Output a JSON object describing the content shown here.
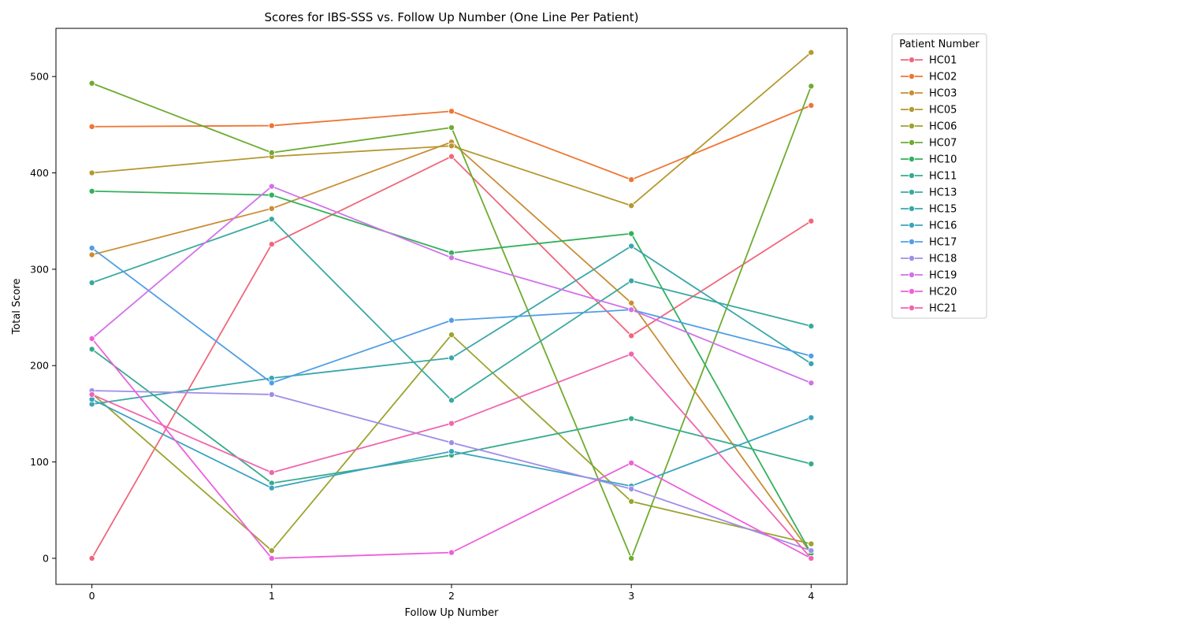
{
  "chart_data": {
    "type": "line",
    "title": "Scores for IBS-SSS vs. Follow Up Number (One Line Per Patient)",
    "xlabel": "Follow Up Number",
    "ylabel": "Total Score",
    "x": [
      0,
      1,
      2,
      3,
      4
    ],
    "xlim": [
      -0.2,
      4.2
    ],
    "ylim": [
      -27,
      550
    ],
    "xticks": [
      0,
      1,
      2,
      3,
      4
    ],
    "yticks": [
      0,
      100,
      200,
      300,
      400,
      500
    ],
    "grid": false,
    "legend": {
      "title": "Patient Number",
      "placement": "outside-right"
    },
    "series": [
      {
        "name": "HC01",
        "color": "#f0677b",
        "values": [
          0,
          326,
          417,
          231,
          350
        ]
      },
      {
        "name": "HC02",
        "color": "#ef7532",
        "values": [
          448,
          449,
          464,
          393,
          470
        ]
      },
      {
        "name": "HC03",
        "color": "#c98d33",
        "values": [
          315,
          363,
          432,
          265,
          5
        ]
      },
      {
        "name": "HC05",
        "color": "#b5982f",
        "values": [
          400,
          417,
          428,
          366,
          525
        ]
      },
      {
        "name": "HC06",
        "color": "#9ca32e",
        "values": [
          171,
          8,
          232,
          59,
          15
        ]
      },
      {
        "name": "HC07",
        "color": "#6eab30",
        "values": [
          493,
          421,
          447,
          0,
          490
        ]
      },
      {
        "name": "HC10",
        "color": "#32b15b",
        "values": [
          381,
          377,
          317,
          337,
          5
        ]
      },
      {
        "name": "HC11",
        "color": "#36ac8c",
        "values": [
          217,
          78,
          107,
          145,
          98
        ]
      },
      {
        "name": "HC13",
        "color": "#38aa9e",
        "values": [
          286,
          352,
          164,
          288,
          241
        ]
      },
      {
        "name": "HC15",
        "color": "#39a7ab",
        "values": [
          160,
          187,
          208,
          324,
          202
        ]
      },
      {
        "name": "HC16",
        "color": "#3ba3c2",
        "values": [
          165,
          73,
          111,
          75,
          146
        ]
      },
      {
        "name": "HC17",
        "color": "#519ee6",
        "values": [
          322,
          182,
          247,
          258,
          210
        ]
      },
      {
        "name": "HC18",
        "color": "#a08de9",
        "values": [
          174,
          170,
          120,
          72,
          8
        ]
      },
      {
        "name": "HC19",
        "color": "#d271ea",
        "values": [
          228,
          386,
          312,
          258,
          182
        ]
      },
      {
        "name": "HC20",
        "color": "#ee5fdc",
        "values": [
          228,
          0,
          6,
          99,
          0
        ]
      },
      {
        "name": "HC21",
        "color": "#f065ae",
        "values": [
          170,
          89,
          140,
          212,
          0
        ]
      }
    ]
  }
}
